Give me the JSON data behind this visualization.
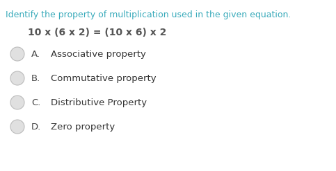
{
  "background_color": "#ffffff",
  "question_text": "Identify the property of multiplication used in the given equation.",
  "question_color": "#3aabbb",
  "equation_text": "10 x (6 x 2) = (10 x 6) x 2",
  "equation_color": "#555555",
  "options": [
    {
      "letter": "A.",
      "text": "Associative property"
    },
    {
      "letter": "B.",
      "text": "Commutative property"
    },
    {
      "letter": "C.",
      "text": "Distributive Property"
    },
    {
      "letter": "D.",
      "text": "Zero property"
    }
  ],
  "option_letter_color": "#444444",
  "option_text_color": "#333333",
  "circle_facecolor": "#e0e0e0",
  "circle_edgecolor": "#bbbbbb",
  "question_fontsize": 9.0,
  "equation_fontsize": 10.0,
  "option_fontsize": 9.5
}
